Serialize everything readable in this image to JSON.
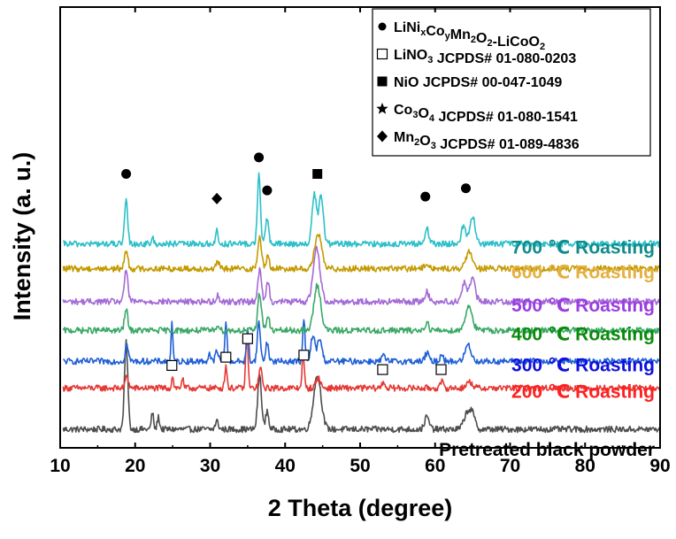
{
  "chart_data": {
    "type": "line",
    "title": "",
    "xlabel": "2 Theta (degree)",
    "ylabel": "Intensity (a. u.)",
    "xlim": [
      10,
      90
    ],
    "x_ticks": [
      10,
      20,
      30,
      40,
      50,
      60,
      70,
      80,
      90
    ],
    "y_ticks_shown": false,
    "grid": false,
    "legend_placement": "top-right",
    "legend": [
      {
        "marker": "circle",
        "parts": [
          [
            "LiNi",
            ""
          ],
          [
            "x",
            "sub"
          ],
          [
            "Co",
            ""
          ],
          [
            "y",
            "sub"
          ],
          [
            "Mn",
            ""
          ],
          [
            "2",
            "sub"
          ],
          [
            "O",
            ""
          ],
          [
            "2",
            "sub"
          ],
          [
            "-LiCoO",
            ""
          ],
          [
            "2",
            "sub"
          ]
        ]
      },
      {
        "marker": "open-square",
        "parts": [
          [
            "LiNO",
            ""
          ],
          [
            "3",
            "sub"
          ],
          [
            "  JCPDS# 01-080-0203",
            ""
          ]
        ]
      },
      {
        "marker": "filled-square",
        "parts": [
          [
            "NiO      JCPDS# 00-047-1049",
            ""
          ]
        ]
      },
      {
        "marker": "star",
        "parts": [
          [
            "Co",
            ""
          ],
          [
            "3",
            "sub"
          ],
          [
            "O",
            ""
          ],
          [
            "4",
            "sub"
          ],
          [
            " JCPDS# 01-080-1541",
            ""
          ]
        ]
      },
      {
        "marker": "diamond",
        "parts": [
          [
            "Mn",
            ""
          ],
          [
            "2",
            "sub"
          ],
          [
            "O",
            ""
          ],
          [
            "3",
            "sub"
          ],
          [
            " JCPDS# 01-089-4836",
            ""
          ]
        ]
      }
    ],
    "series": [
      {
        "name": "Pretreated black powder",
        "color": "#4d4d4d",
        "baseline": 0.0,
        "noise": 0.15,
        "peaks": [
          [
            18.8,
            4.2,
            0.22
          ],
          [
            22.3,
            0.8,
            0.15
          ],
          [
            23.1,
            0.6,
            0.15
          ],
          [
            30.9,
            0.4,
            0.2
          ],
          [
            36.6,
            2.6,
            0.25
          ],
          [
            37.6,
            0.9,
            0.2
          ],
          [
            44.3,
            2.6,
            0.5
          ],
          [
            58.9,
            0.6,
            0.3
          ],
          [
            64.3,
            0.8,
            0.45
          ],
          [
            65.0,
            0.6,
            0.35
          ]
        ]
      },
      {
        "name": "200 ℃ Roasting",
        "color": "#e53935",
        "baseline": 2.0,
        "noise": 0.15,
        "peaks": [
          [
            18.9,
            0.6,
            0.2
          ],
          [
            25.0,
            0.6,
            0.12
          ],
          [
            26.3,
            0.5,
            0.12
          ],
          [
            32.1,
            1.1,
            0.15
          ],
          [
            34.9,
            2.7,
            0.15
          ],
          [
            36.7,
            1.0,
            0.2
          ],
          [
            42.4,
            1.6,
            0.15
          ],
          [
            44.4,
            0.5,
            0.3
          ],
          [
            53.1,
            0.3,
            0.2
          ],
          [
            60.9,
            0.3,
            0.2
          ],
          [
            64.6,
            0.3,
            0.4
          ]
        ]
      },
      {
        "name": "300 ℃ Roasting",
        "color": "#1f5fd6",
        "baseline": 3.3,
        "noise": 0.15,
        "peaks": [
          [
            18.9,
            0.8,
            0.2
          ],
          [
            24.9,
            1.8,
            0.12
          ],
          [
            29.9,
            0.4,
            0.15
          ],
          [
            30.9,
            0.5,
            0.2
          ],
          [
            32.1,
            1.9,
            0.15
          ],
          [
            35.0,
            1.5,
            0.15
          ],
          [
            36.5,
            1.9,
            0.2
          ],
          [
            37.6,
            0.9,
            0.2
          ],
          [
            42.5,
            2.0,
            0.15
          ],
          [
            43.7,
            1.3,
            0.25
          ],
          [
            44.6,
            1.1,
            0.3
          ],
          [
            53.1,
            0.3,
            0.2
          ],
          [
            58.9,
            0.4,
            0.25
          ],
          [
            60.9,
            0.4,
            0.2
          ],
          [
            64.4,
            0.8,
            0.4
          ]
        ]
      },
      {
        "name": "400 ℃ Roasting",
        "color": "#3aa866",
        "baseline": 4.8,
        "noise": 0.15,
        "peaks": [
          [
            18.8,
            1.0,
            0.22
          ],
          [
            31.0,
            0.3,
            0.2
          ],
          [
            36.6,
            1.8,
            0.25
          ],
          [
            37.7,
            0.7,
            0.2
          ],
          [
            44.3,
            2.2,
            0.45
          ],
          [
            58.9,
            0.4,
            0.25
          ],
          [
            64.5,
            1.2,
            0.45
          ]
        ]
      },
      {
        "name": "500 ℃ Roasting",
        "color": "#a46ad6",
        "baseline": 6.2,
        "noise": 0.15,
        "peaks": [
          [
            18.8,
            1.6,
            0.22
          ],
          [
            31.0,
            0.3,
            0.2
          ],
          [
            36.6,
            1.5,
            0.25
          ],
          [
            37.7,
            1.0,
            0.2
          ],
          [
            44.2,
            2.6,
            0.45
          ],
          [
            58.9,
            0.5,
            0.25
          ],
          [
            63.9,
            0.9,
            0.35
          ],
          [
            65.0,
            1.1,
            0.35
          ]
        ]
      },
      {
        "name": "600 ℃ Roasting",
        "color": "#c49a00",
        "baseline": 7.8,
        "noise": 0.15,
        "peaks": [
          [
            18.8,
            0.9,
            0.22
          ],
          [
            31.0,
            0.3,
            0.2
          ],
          [
            36.6,
            1.5,
            0.25
          ],
          [
            37.7,
            0.6,
            0.2
          ],
          [
            44.4,
            1.7,
            0.45
          ],
          [
            58.9,
            0.3,
            0.25
          ],
          [
            64.6,
            0.8,
            0.45
          ]
        ]
      },
      {
        "name": "700 ℃ Roasting",
        "color": "#2cc0c8",
        "baseline": 9.0,
        "noise": 0.15,
        "peaks": [
          [
            18.8,
            2.1,
            0.2
          ],
          [
            22.3,
            0.3,
            0.15
          ],
          [
            30.9,
            0.7,
            0.15
          ],
          [
            36.5,
            3.4,
            0.2
          ],
          [
            37.6,
            1.3,
            0.2
          ],
          [
            43.9,
            2.4,
            0.3
          ],
          [
            44.8,
            2.3,
            0.3
          ],
          [
            58.9,
            0.8,
            0.25
          ],
          [
            63.8,
            0.9,
            0.3
          ],
          [
            65.0,
            1.3,
            0.35
          ]
        ]
      }
    ],
    "label_colors": {
      "Pretreated black powder": "#000000",
      "200 ℃ Roasting": "#ff2020",
      "300 ℃ Roasting": "#1010dd",
      "400 ℃ Roasting": "#0a8a0a",
      "500 ℃ Roasting": "#9a3ee0",
      "600 ℃ Roasting": "#e5b040",
      "700 ℃ Roasting": "#138b8b"
    },
    "markers_700": [
      {
        "type": "circle",
        "x": 18.8,
        "level": 12.4
      },
      {
        "type": "diamond",
        "x": 30.9,
        "level": 11.2
      },
      {
        "type": "circle",
        "x": 36.5,
        "level": 13.2
      },
      {
        "type": "circle",
        "x": 37.6,
        "level": 11.6
      },
      {
        "type": "filled-square",
        "x": 44.3,
        "level": 12.4
      },
      {
        "type": "circle",
        "x": 58.7,
        "level": 11.3
      },
      {
        "type": "circle",
        "x": 64.1,
        "level": 11.7
      }
    ],
    "markers_300": [
      {
        "type": "open-square",
        "x": 24.9,
        "level": 3.1
      },
      {
        "type": "open-square",
        "x": 32.1,
        "level": 3.5
      },
      {
        "type": "open-square",
        "x": 35.0,
        "level": 4.4
      },
      {
        "type": "open-square",
        "x": 42.5,
        "level": 3.6
      },
      {
        "type": "open-square",
        "x": 53.0,
        "level": 2.9
      },
      {
        "type": "open-square",
        "x": 60.8,
        "level": 2.9
      }
    ],
    "ylim": [
      -0.9,
      20.5
    ]
  }
}
